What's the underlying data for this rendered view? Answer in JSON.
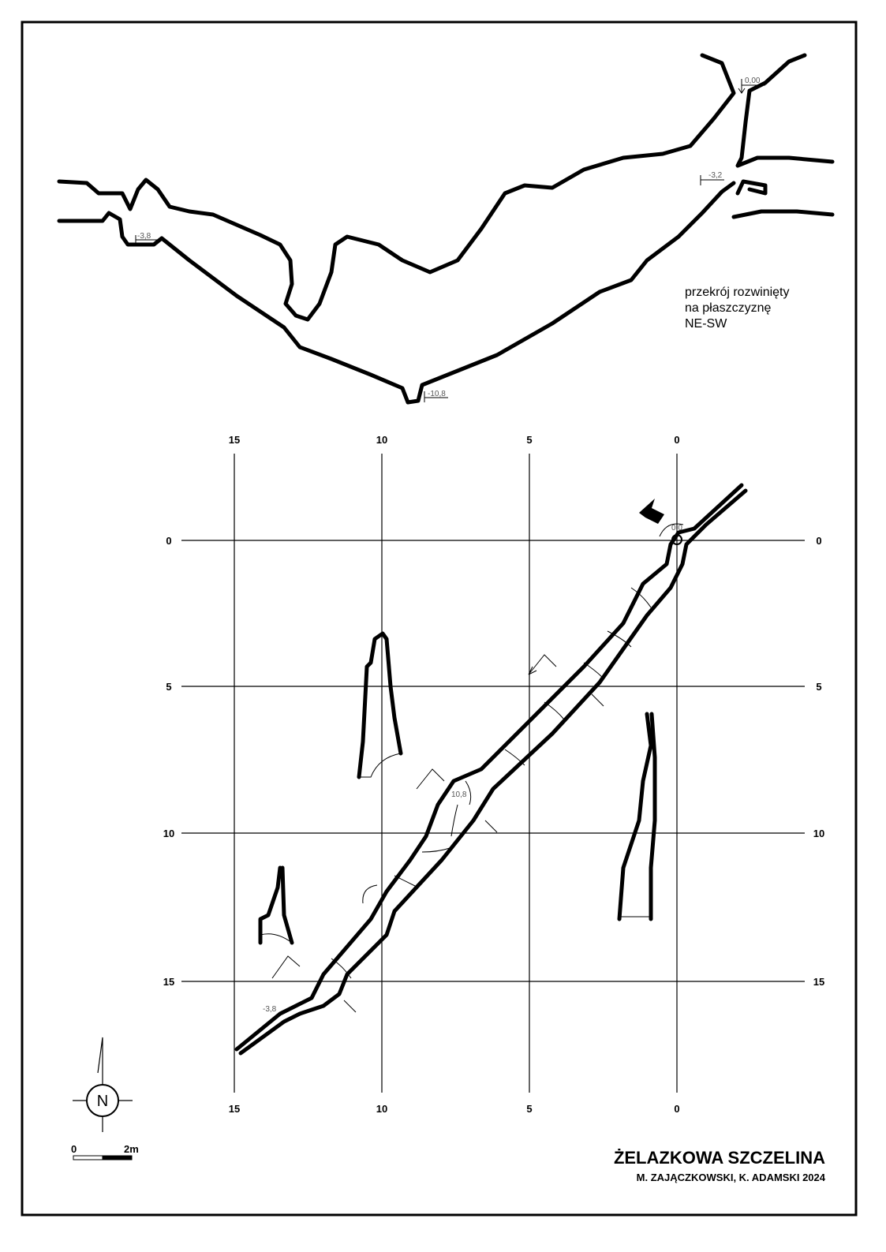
{
  "profile": {
    "depth_labels": [
      "0,00",
      "-3,2",
      "-3,8",
      "-10,8"
    ],
    "description": [
      "przekrój rozwinięty",
      "na płaszczyznę",
      "NE-SW"
    ]
  },
  "plan": {
    "grid_columns": [
      "15",
      "10",
      "5",
      "0"
    ],
    "grid_rows": [
      "0",
      "5",
      "10",
      "15"
    ],
    "depth_labels": [
      "0,0",
      "10,8",
      "-3,8"
    ]
  },
  "north": "N",
  "scale": [
    "0",
    "2m"
  ],
  "title": "ŻELAZKOWA SZCZELINA",
  "authors": "M. ZAJĄCZKOWSKI, K. ADAMSKI 2024"
}
